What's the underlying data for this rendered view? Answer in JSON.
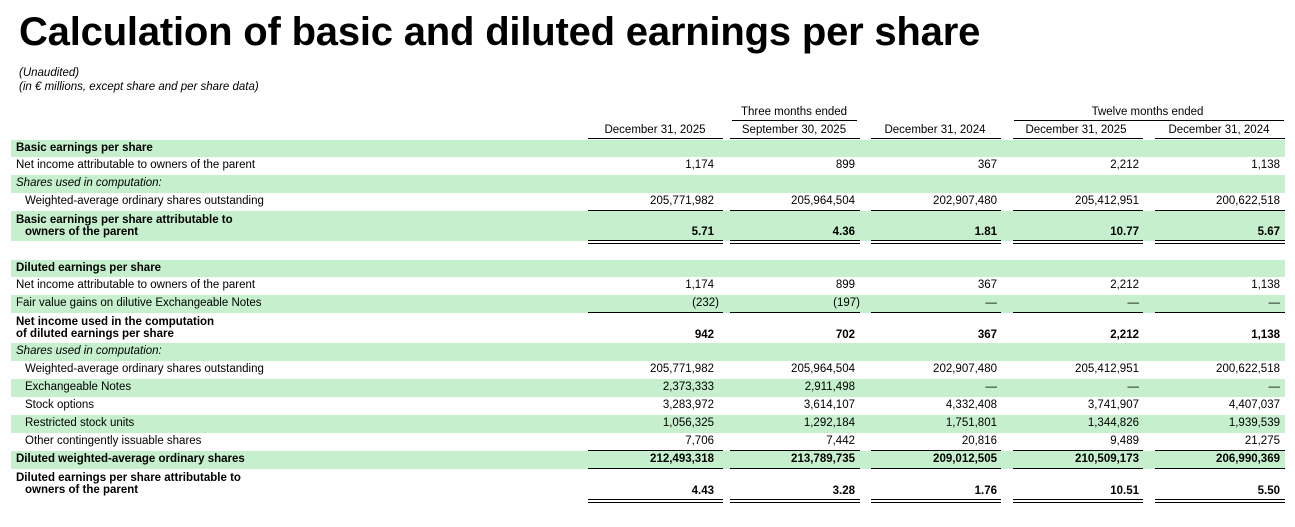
{
  "title": "Calculation of basic and diluted earnings per share",
  "subtitle_lines": [
    "(Unaudited)",
    "(in € millions, except share and per share data)"
  ],
  "period_groups": [
    "Three months ended",
    "Twelve months ended"
  ],
  "columns": [
    "December 31, 2025",
    "September 30, 2025",
    "December 31, 2024",
    "December 31, 2025",
    "December 31, 2024"
  ],
  "basic": {
    "section_title": "Basic earnings per share",
    "net_income": {
      "label": "Net income attributable to owners of the parent",
      "values": [
        "1,174",
        "899",
        "367",
        "2,212",
        "1,138"
      ]
    },
    "shares_label": "Shares used in computation:",
    "weighted": {
      "label": "Weighted-average ordinary shares outstanding",
      "values": [
        "205,771,982",
        "205,964,504",
        "202,907,480",
        "205,412,951",
        "200,622,518"
      ]
    },
    "eps": {
      "label_lines": [
        "Basic earnings per share attributable to",
        "owners of the parent"
      ],
      "values": [
        "5.71",
        "4.36",
        "1.81",
        "10.77",
        "5.67"
      ]
    }
  },
  "diluted": {
    "section_title": "Diluted earnings per share",
    "net_income": {
      "label": "Net income attributable to owners of the parent",
      "values": [
        "1,174",
        "899",
        "367",
        "2,212",
        "1,138"
      ]
    },
    "fair_value": {
      "label": "Fair value gains on dilutive Exchangeable Notes",
      "values": [
        "(232)",
        "(197)",
        "—",
        "—",
        "—"
      ]
    },
    "net_income_used": {
      "label_lines": [
        "Net income used in the computation",
        "of diluted earnings per share"
      ],
      "values": [
        "942",
        "702",
        "367",
        "2,212",
        "1,138"
      ]
    },
    "shares_label": "Shares used in computation:",
    "weighted": {
      "label": "Weighted-average ordinary shares outstanding",
      "values": [
        "205,771,982",
        "205,964,504",
        "202,907,480",
        "205,412,951",
        "200,622,518"
      ]
    },
    "exchangeable": {
      "label": "Exchangeable Notes",
      "values": [
        "2,373,333",
        "2,911,498",
        "—",
        "—",
        "—"
      ]
    },
    "stock_options": {
      "label": "Stock options",
      "values": [
        "3,283,972",
        "3,614,107",
        "4,332,408",
        "3,741,907",
        "4,407,037"
      ]
    },
    "rsu": {
      "label": "Restricted stock units",
      "values": [
        "1,056,325",
        "1,292,184",
        "1,751,801",
        "1,344,826",
        "1,939,539"
      ]
    },
    "other": {
      "label": "Other contingently issuable shares",
      "values": [
        "7,706",
        "7,442",
        "20,816",
        "9,489",
        "21,275"
      ]
    },
    "diluted_weighted": {
      "label": "Diluted weighted-average ordinary shares",
      "values": [
        "212,493,318",
        "213,789,735",
        "209,012,505",
        "210,509,173",
        "206,990,369"
      ]
    },
    "eps": {
      "label_lines": [
        "Diluted earnings per share attributable to",
        "owners of the parent"
      ],
      "values": [
        "4.43",
        "3.28",
        "1.76",
        "10.51",
        "5.50"
      ]
    }
  }
}
